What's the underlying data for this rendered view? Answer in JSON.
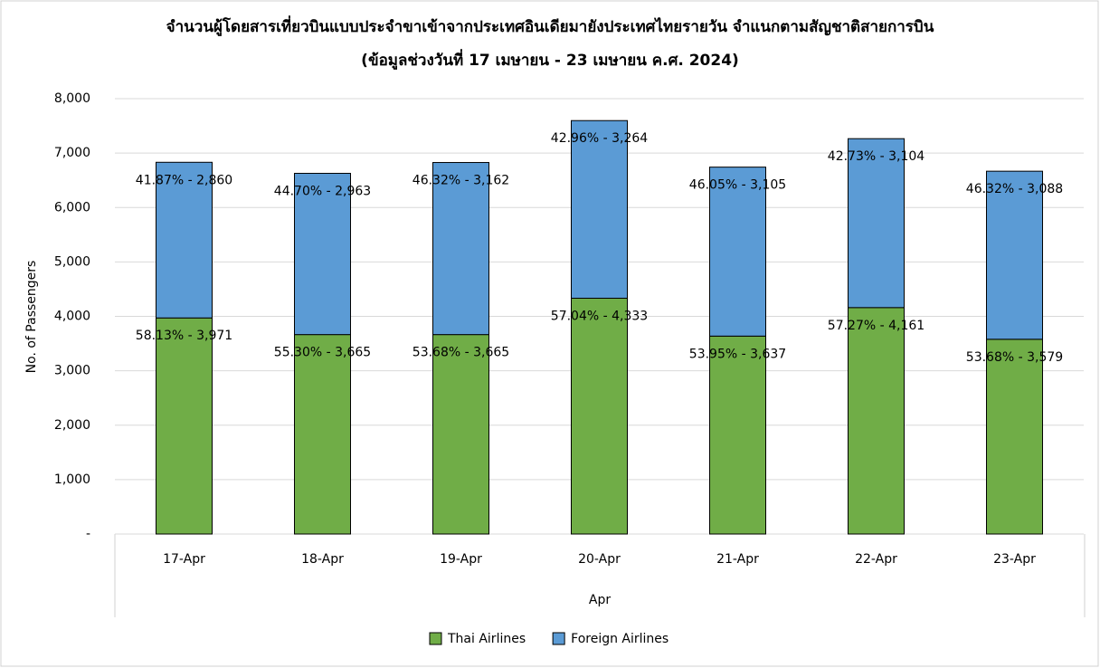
{
  "chart_data": {
    "type": "stacked_bar",
    "title": "จำนวนผู้โดยสารเที่ยวบินแบบประจำขาเข้าจากประเทศอินเดียมายังประเทศไทยรายวัน  จำแนกตามสัญชาติสายการบิน",
    "subtitle": "(ข้อมูลช่วงวันที่ 17 เมษายน - 23 เมษายน ค.ศ. 2024)",
    "x_label": "Apr",
    "y_label": "No. of Passengers",
    "categories": [
      "17-Apr",
      "18-Apr",
      "19-Apr",
      "20-Apr",
      "21-Apr",
      "22-Apr",
      "23-Apr"
    ],
    "series": [
      {
        "name": "Thai Airlines",
        "color": "#70ad47",
        "values": [
          3971,
          3665,
          3665,
          4333,
          3637,
          4161,
          3579
        ],
        "value_labels": [
          "58.13% - 3,971",
          "55.30% - 3,665",
          "53.68% - 3,665",
          "57.04% - 4,333",
          "53.95% - 3,637",
          "57.27% - 4,161",
          "53.68% - 3,579"
        ]
      },
      {
        "name": "Foreign Airlines",
        "color": "#5b9bd5",
        "values": [
          2860,
          2963,
          3162,
          3264,
          3105,
          3104,
          3088
        ],
        "value_labels": [
          "41.87% - 2,860",
          "44.70% - 2,963",
          "46.32% - 3,162",
          "42.96% - 3,264",
          "46.05% - 3,105",
          "42.73% - 3,104",
          "46.32% - 3,088"
        ]
      }
    ],
    "ylim": [
      0,
      8000
    ],
    "yticks": [
      {
        "value": 0,
        "label": "-"
      },
      {
        "value": 1000,
        "label": "1,000"
      },
      {
        "value": 2000,
        "label": "2,000"
      },
      {
        "value": 3000,
        "label": "3,000"
      },
      {
        "value": 4000,
        "label": "4,000"
      },
      {
        "value": 5000,
        "label": "5,000"
      },
      {
        "value": 6000,
        "label": "6,000"
      },
      {
        "value": 7000,
        "label": "7,000"
      },
      {
        "value": 8000,
        "label": "8,000"
      }
    ],
    "grid": true,
    "legend": "bottom"
  }
}
